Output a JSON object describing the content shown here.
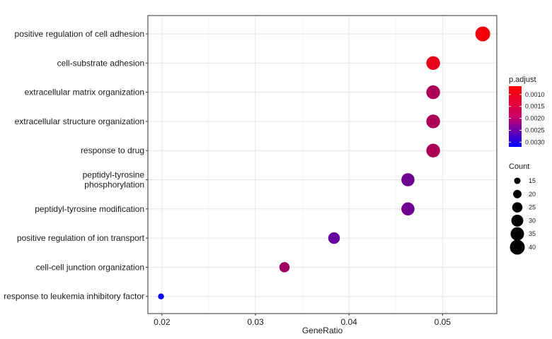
{
  "chart_data": {
    "type": "scatter",
    "title": "",
    "xlabel": "GeneRatio",
    "ylabel": "",
    "xlim": [
      0.0185,
      0.0558
    ],
    "xticks": [
      "0.02",
      "0.03",
      "0.04",
      "0.05"
    ],
    "xtick_values": [
      0.02,
      0.03,
      0.04,
      0.05
    ],
    "grid": true,
    "legend_position": "right",
    "categories": [
      "positive regulation of cell adhesion",
      "cell-substrate adhesion",
      "extracellular matrix organization",
      "extracellular structure organization",
      "response to drug",
      "peptidyl-tyrosine phosphorylation",
      "peptidyl-tyrosine modification",
      "positive regulation of ion transport",
      "cell-cell junction organization",
      "response to leukemia inhibitory factor"
    ],
    "category_lines": [
      [
        "positive regulation of cell adhesion"
      ],
      [
        "cell-substrate adhesion"
      ],
      [
        "extracellular matrix organization"
      ],
      [
        "extracellular structure organization"
      ],
      [
        "response to drug"
      ],
      [
        "peptidyl-tyrosine",
        "phosphorylation"
      ],
      [
        "peptidyl-tyrosine modification"
      ],
      [
        "positive regulation of ion transport"
      ],
      [
        "cell-cell junction organization"
      ],
      [
        "response to leukemia inhibitory factor"
      ]
    ],
    "points": [
      {
        "term": "positive regulation of cell adhesion",
        "x": 0.0543,
        "count": 40,
        "p_adjust": 0.00075
      },
      {
        "term": "cell-substrate adhesion",
        "x": 0.049,
        "count": 36,
        "p_adjust": 0.0009
      },
      {
        "term": "extracellular matrix organization",
        "x": 0.049,
        "count": 36,
        "p_adjust": 0.0015
      },
      {
        "term": "extracellular structure organization",
        "x": 0.049,
        "count": 36,
        "p_adjust": 0.0015
      },
      {
        "term": "response to drug",
        "x": 0.049,
        "count": 36,
        "p_adjust": 0.0015
      },
      {
        "term": "peptidyl-tyrosine phosphorylation",
        "x": 0.0463,
        "count": 34,
        "p_adjust": 0.0021
      },
      {
        "term": "peptidyl-tyrosine modification",
        "x": 0.0463,
        "count": 34,
        "p_adjust": 0.0021
      },
      {
        "term": "positive regulation of ion transport",
        "x": 0.0384,
        "count": 29,
        "p_adjust": 0.0022
      },
      {
        "term": "cell-cell junction organization",
        "x": 0.0331,
        "count": 25,
        "p_adjust": 0.0016
      },
      {
        "term": "response to leukemia inhibitory factor",
        "x": 0.0199,
        "count": 14,
        "p_adjust": 0.0031
      }
    ],
    "color_legend": {
      "title": "p.adjust",
      "labels": [
        "0.0010",
        "0.0015",
        "0.0020",
        "0.0025",
        "0.0030"
      ],
      "values": [
        0.001,
        0.0015,
        0.002,
        0.0025,
        0.003
      ],
      "min": 0.00065,
      "max": 0.0032,
      "low_color": "#ff0000",
      "high_color": "#0000ff"
    },
    "size_legend": {
      "title": "Count",
      "labels": [
        "15",
        "20",
        "25",
        "30",
        "35",
        "40"
      ],
      "values": [
        15,
        20,
        25,
        30,
        35,
        40
      ],
      "color": "#000000"
    }
  }
}
